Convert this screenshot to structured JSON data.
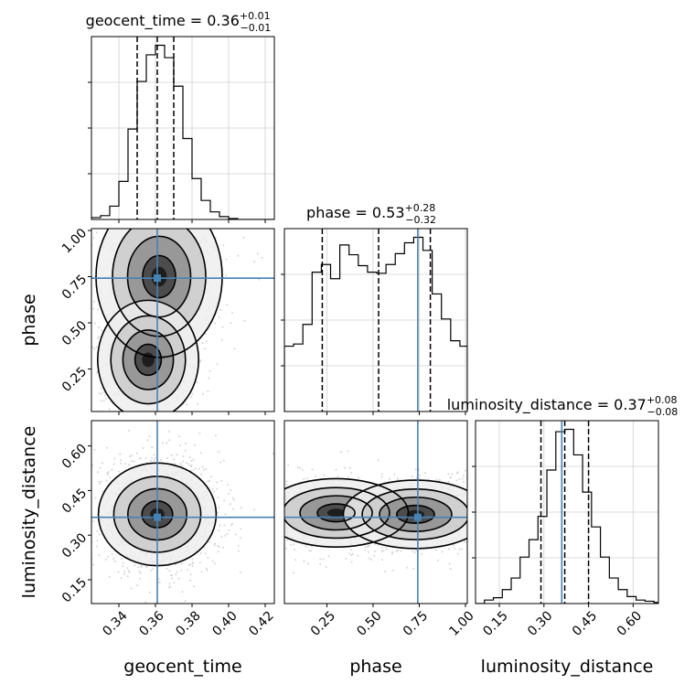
{
  "chart_data": {
    "type": "corner",
    "parameters": [
      {
        "name": "geocent_time",
        "axis_label": "geocent_time",
        "title_prefix": "geocent_time = 0.36",
        "title_sup": "+0.01",
        "title_sub": "−0.01",
        "range": [
          0.325,
          0.425
        ],
        "ticks": [
          0.34,
          0.36,
          0.38,
          0.4,
          0.42
        ],
        "tick_labels": [
          "0.34",
          "0.36",
          "0.38",
          "0.40",
          "0.42"
        ],
        "quantiles": [
          0.35,
          0.361,
          0.37
        ],
        "truth": 0.361
      },
      {
        "name": "phase",
        "axis_label": "phase",
        "title_prefix": "phase = 0.53",
        "title_sup": "+0.28",
        "title_sub": "−0.32",
        "range": [
          0.02,
          1.01
        ],
        "ticks": [
          0.25,
          0.5,
          0.75,
          1.0
        ],
        "tick_labels": [
          "0.25",
          "0.50",
          "0.75",
          "1.00"
        ],
        "quantiles": [
          0.225,
          0.53,
          0.81
        ],
        "truth": 0.742
      },
      {
        "name": "luminosity_distance",
        "axis_label": "luminosity_distance",
        "title_prefix": "luminosity_distance = 0.37",
        "title_sup": "+0.08",
        "title_sub": "−0.08",
        "range": [
          0.07,
          0.685
        ],
        "ticks": [
          0.15,
          0.3,
          0.45,
          0.6
        ],
        "tick_labels": [
          "0.15",
          "0.30",
          "0.45",
          "0.60"
        ],
        "quantiles": [
          0.29,
          0.37,
          0.45
        ],
        "truth": 0.36
      }
    ],
    "histograms": [
      {
        "param": "geocent_time",
        "bin_edges": [
          0.325,
          0.33,
          0.335,
          0.34,
          0.345,
          0.35,
          0.355,
          0.36,
          0.365,
          0.37,
          0.375,
          0.38,
          0.385,
          0.39,
          0.395,
          0.4,
          0.405,
          0.41,
          0.415,
          0.42,
          0.425
        ],
        "counts": [
          2,
          4,
          14,
          40,
          95,
          145,
          173,
          183,
          170,
          140,
          85,
          43,
          20,
          8,
          3,
          1,
          0,
          0,
          0,
          0
        ]
      },
      {
        "param": "phase",
        "bin_edges": [
          0.02,
          0.07,
          0.12,
          0.17,
          0.22,
          0.27,
          0.32,
          0.37,
          0.42,
          0.47,
          0.52,
          0.57,
          0.62,
          0.67,
          0.72,
          0.77,
          0.82,
          0.87,
          0.92,
          0.97,
          1.01
        ],
        "counts": [
          60,
          62,
          80,
          128,
          135,
          122,
          153,
          144,
          134,
          128,
          127,
          135,
          145,
          155,
          160,
          148,
          108,
          85,
          65,
          60
        ]
      },
      {
        "param": "luminosity_distance",
        "bin_edges": [
          0.07,
          0.1,
          0.13,
          0.16,
          0.19,
          0.22,
          0.25,
          0.28,
          0.31,
          0.34,
          0.37,
          0.4,
          0.43,
          0.46,
          0.49,
          0.52,
          0.55,
          0.58,
          0.61,
          0.64,
          0.67,
          0.685
        ],
        "counts": [
          0,
          3,
          5,
          12,
          22,
          40,
          55,
          75,
          115,
          148,
          150,
          128,
          96,
          66,
          40,
          22,
          12,
          6,
          3,
          2,
          1
        ]
      }
    ],
    "joint_panels": [
      {
        "x": "geocent_time",
        "y": "phase",
        "modes": [
          [
            0.362,
            0.75,
            0.015,
            0.19
          ],
          [
            0.356,
            0.3,
            0.012,
            0.14
          ]
        ]
      },
      {
        "x": "geocent_time",
        "y": "luminosity_distance",
        "modes": [
          [
            0.361,
            0.37,
            0.014,
            0.075
          ]
        ]
      },
      {
        "x": "phase",
        "y": "luminosity_distance",
        "modes": [
          [
            0.3,
            0.375,
            0.17,
            0.05
          ],
          [
            0.73,
            0.37,
            0.17,
            0.05
          ]
        ]
      }
    ],
    "truth_color": "#4682b4",
    "grid": true
  },
  "colors": {
    "line": "#000000",
    "truth": "#4682b4",
    "grid": "#d0d0d0",
    "background": "#ffffff"
  }
}
